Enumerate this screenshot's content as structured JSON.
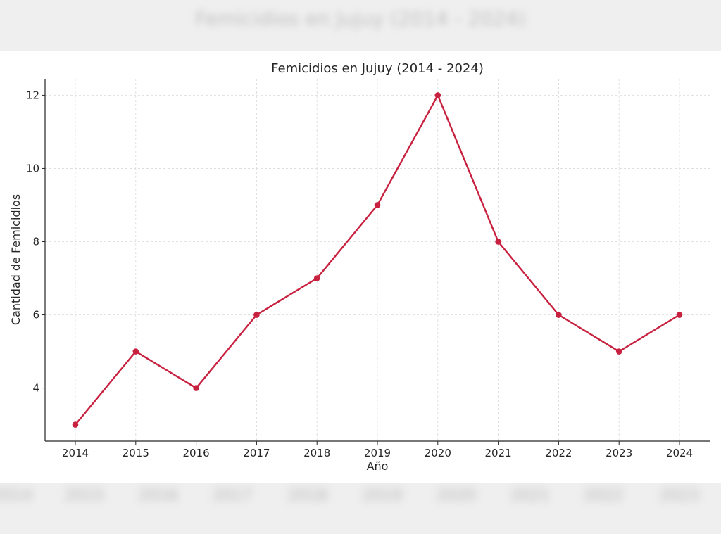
{
  "chart_data": {
    "type": "line",
    "title": "Femicidios en Jujuy (2014 - 2024)",
    "xlabel": "Año",
    "ylabel": "Cantidad de Femicidios",
    "x": [
      "2014",
      "2015",
      "2016",
      "2017",
      "2018",
      "2019",
      "2020",
      "2021",
      "2022",
      "2023",
      "2024"
    ],
    "values": [
      3,
      5,
      4,
      6,
      7,
      9,
      12,
      8,
      6,
      5,
      6
    ],
    "yticks": [
      4,
      6,
      8,
      10,
      12
    ],
    "ylim": [
      2.55,
      12.45
    ],
    "grid": true,
    "markers": true,
    "line_color": "#c8203f"
  }
}
